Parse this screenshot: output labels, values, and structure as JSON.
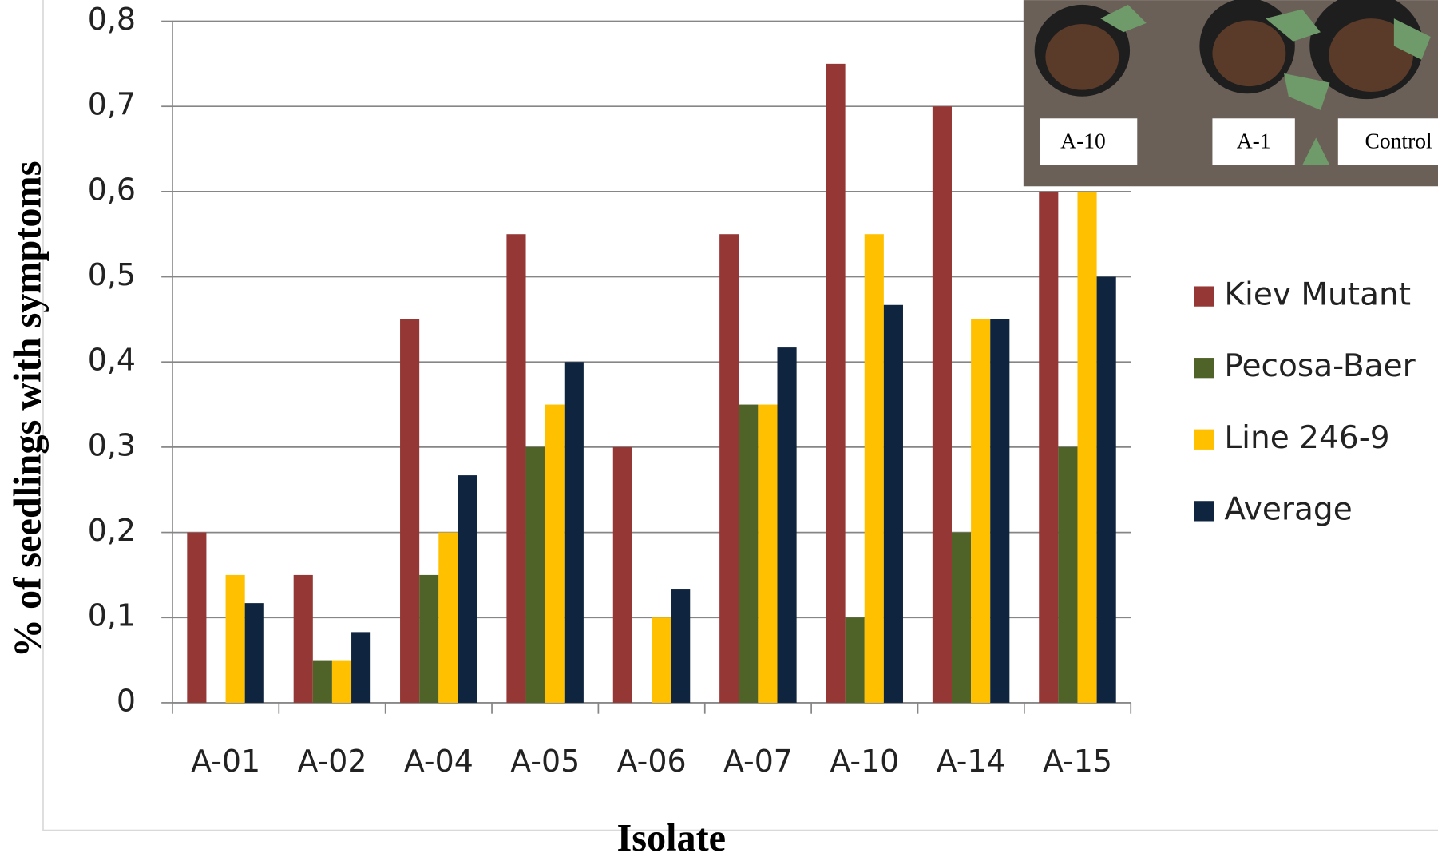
{
  "chart_data": {
    "type": "bar",
    "x_label": "Isolate",
    "y_label": "% of seedlings with symptoms",
    "categories": [
      "A-01",
      "A-02",
      "A-04",
      "A-05",
      "A-06",
      "A-07",
      "A-10",
      "A-14",
      "A-15"
    ],
    "series": [
      {
        "name": "Kiev Mutant",
        "color": "#953735",
        "values": [
          0.2,
          0.15,
          0.45,
          0.55,
          0.3,
          0.55,
          0.75,
          0.7,
          0.6
        ]
      },
      {
        "name": "Pecosa-Baer",
        "color": "#4f6228",
        "values": [
          0,
          0.05,
          0.15,
          0.3,
          0,
          0.35,
          0.1,
          0.2,
          0.3
        ]
      },
      {
        "name": "Line 246-9",
        "color": "#ffc000",
        "values": [
          0.15,
          0.05,
          0.2,
          0.35,
          0.1,
          0.35,
          0.55,
          0.45,
          0.6
        ]
      },
      {
        "name": "Average",
        "color": "#0f243e",
        "values": [
          0.117,
          0.083,
          0.267,
          0.4,
          0.133,
          0.417,
          0.467,
          0.45,
          0.5
        ]
      }
    ],
    "ylim": [
      0,
      0.8
    ],
    "yticks": [
      0,
      {
        "value": 0.1,
        "label": "0,1"
      },
      {
        "value": 0.2,
        "label": "0,2"
      },
      {
        "value": 0.3,
        "label": "0,3"
      },
      {
        "value": 0.4,
        "label": "0,4"
      },
      {
        "value": 0.5,
        "label": "0,5"
      },
      {
        "value": 0.6,
        "label": "0,6"
      },
      {
        "value": 0.7,
        "label": "0,7"
      },
      {
        "value": 0.8,
        "label": "0,8"
      }
    ],
    "grid": true,
    "legend": "right",
    "inset_labels": [
      "A-10",
      "A-1",
      "Control"
    ]
  }
}
